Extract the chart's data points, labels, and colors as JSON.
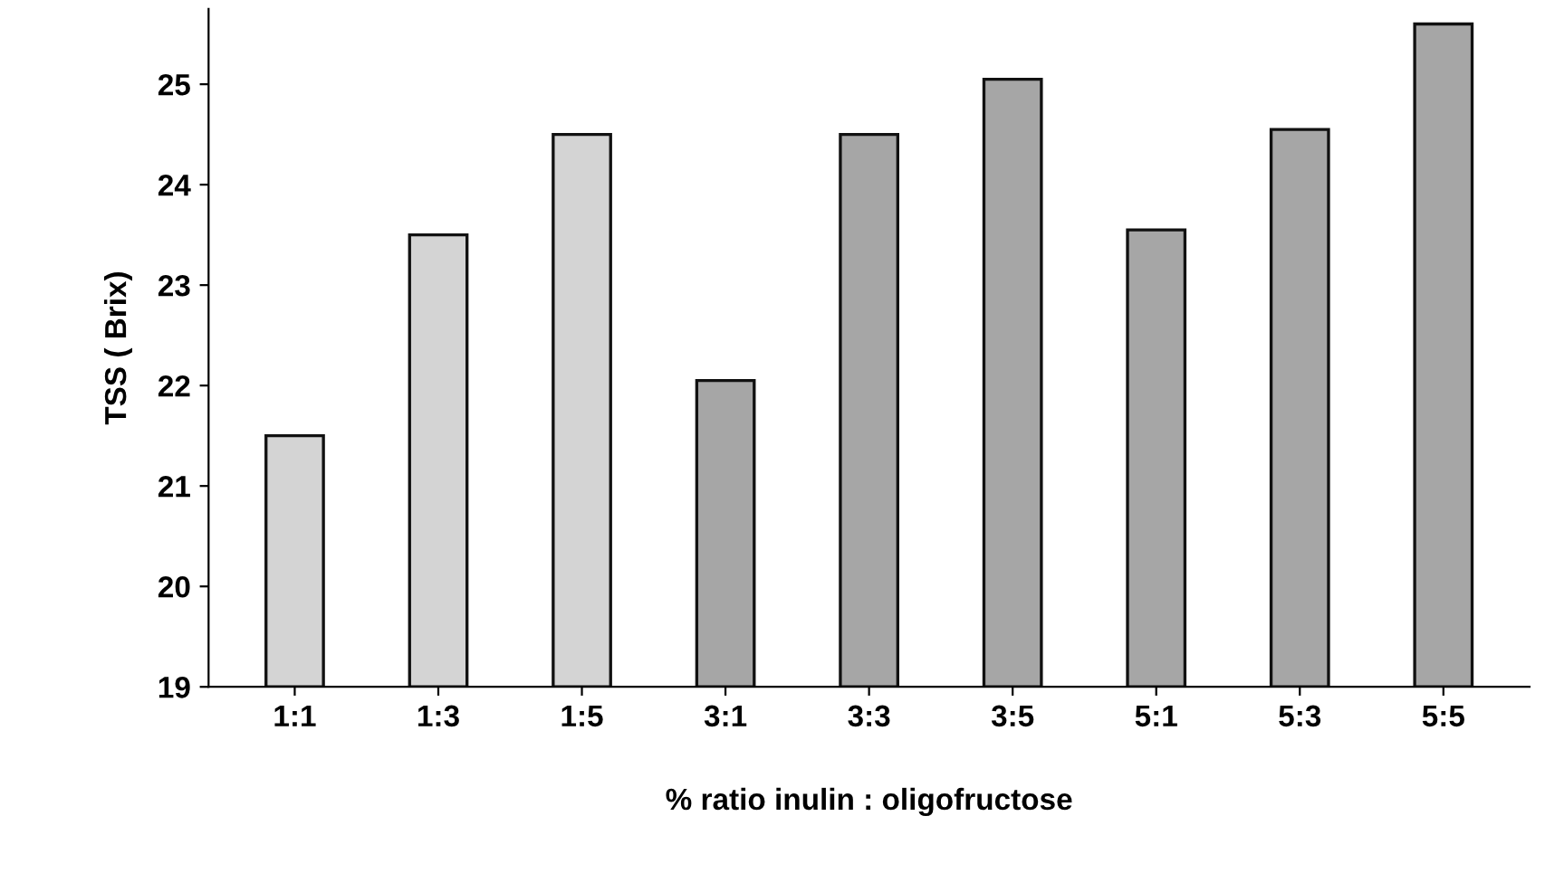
{
  "chart_data": {
    "type": "bar",
    "xlabel": "% ratio inulin : oligofructose",
    "ylabel": "TSS ( Brix)",
    "categories": [
      "1:1",
      "1:3",
      "1:5",
      "3:1",
      "3:3",
      "3:5",
      "5:1",
      "5:3",
      "5:5"
    ],
    "values": [
      21.5,
      23.5,
      24.5,
      22.05,
      24.5,
      25.05,
      23.55,
      24.55,
      25.6
    ],
    "colors": [
      "#d4d4d4",
      "#d4d4d4",
      "#d4d4d4",
      "#a6a6a6",
      "#a6a6a6",
      "#a6a6a6",
      "#a6a6a6",
      "#a6a6a6",
      "#a6a6a6"
    ],
    "ylim": [
      19,
      25.75
    ],
    "yticks": [
      19,
      20,
      21,
      22,
      23,
      24,
      25
    ],
    "grid": false
  }
}
